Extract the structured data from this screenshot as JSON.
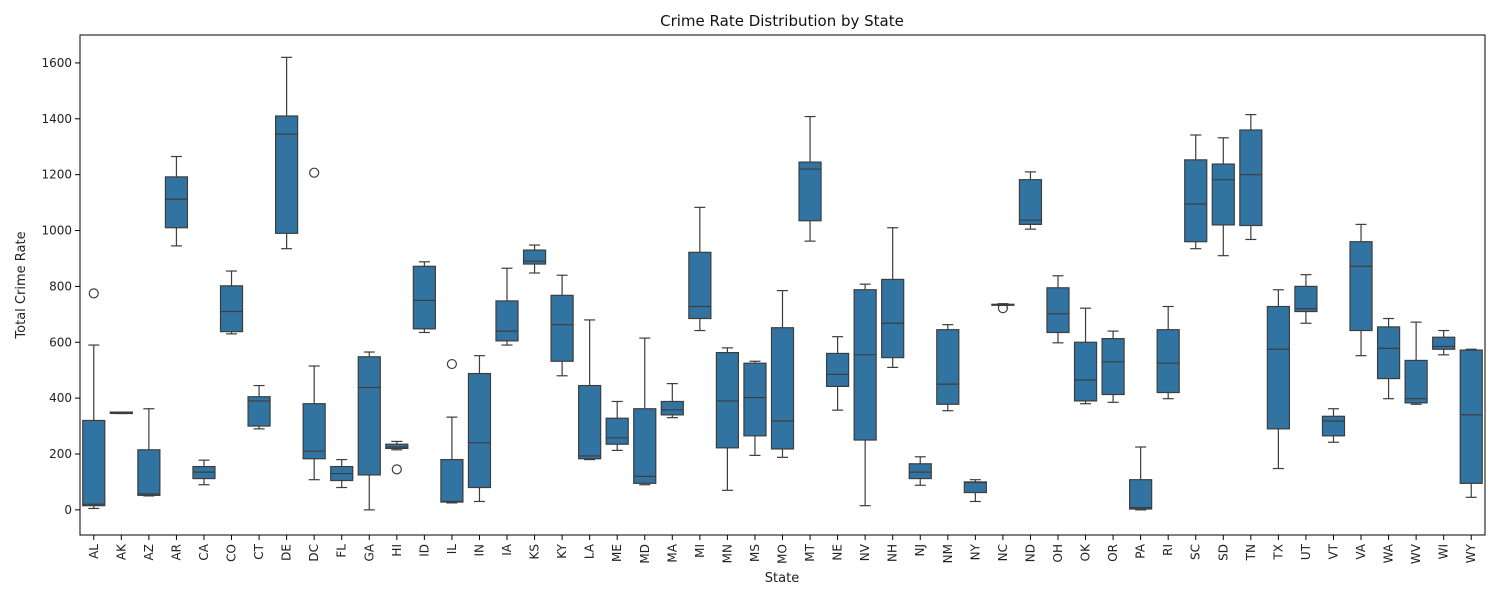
{
  "chart_data": {
    "type": "box",
    "title": "Crime Rate Distribution by State",
    "xlabel": "State",
    "ylabel": "Total Crime Rate",
    "ylim": [
      -90,
      1700
    ],
    "yticks": [
      0,
      200,
      400,
      600,
      800,
      1000,
      1200,
      1400,
      1600
    ],
    "grid": false,
    "legend": "none",
    "box_color": "#3274a1",
    "line_color": "#3d3d3d",
    "categories": [
      "AL",
      "AK",
      "AZ",
      "AR",
      "CA",
      "CO",
      "CT",
      "DE",
      "DC",
      "FL",
      "GA",
      "HI",
      "ID",
      "IL",
      "IN",
      "IA",
      "KS",
      "KY",
      "LA",
      "ME",
      "MD",
      "MA",
      "MI",
      "MN",
      "MS",
      "MO",
      "MT",
      "NE",
      "NV",
      "NH",
      "NJ",
      "NM",
      "NY",
      "NC",
      "ND",
      "OH",
      "OK",
      "OR",
      "PA",
      "RI",
      "SC",
      "SD",
      "TN",
      "TX",
      "UT",
      "VT",
      "VA",
      "WA",
      "WV",
      "WI",
      "WY"
    ],
    "boxes": [
      {
        "state": "AL",
        "min": 5,
        "q1": 15,
        "median": 20,
        "q3": 320,
        "max": 590,
        "outliers": [
          775
        ]
      },
      {
        "state": "AK",
        "min": 345,
        "q1": 345,
        "median": 348,
        "q3": 350,
        "max": 350,
        "outliers": []
      },
      {
        "state": "AZ",
        "min": 50,
        "q1": 52,
        "median": 57,
        "q3": 215,
        "max": 362,
        "outliers": []
      },
      {
        "state": "AR",
        "min": 945,
        "q1": 1010,
        "median": 1112,
        "q3": 1192,
        "max": 1265,
        "outliers": []
      },
      {
        "state": "CA",
        "min": 90,
        "q1": 112,
        "median": 135,
        "q3": 155,
        "max": 178,
        "outliers": []
      },
      {
        "state": "CO",
        "min": 630,
        "q1": 638,
        "median": 710,
        "q3": 802,
        "max": 855,
        "outliers": []
      },
      {
        "state": "CT",
        "min": 290,
        "q1": 300,
        "median": 390,
        "q3": 405,
        "max": 445,
        "outliers": []
      },
      {
        "state": "DE",
        "min": 935,
        "q1": 990,
        "median": 1345,
        "q3": 1410,
        "max": 1620,
        "outliers": []
      },
      {
        "state": "DC",
        "min": 108,
        "q1": 183,
        "median": 210,
        "q3": 380,
        "max": 515,
        "outliers": [
          1207
        ]
      },
      {
        "state": "FL",
        "min": 80,
        "q1": 105,
        "median": 130,
        "q3": 155,
        "max": 180,
        "outliers": []
      },
      {
        "state": "GA",
        "min": 0,
        "q1": 125,
        "median": 438,
        "q3": 548,
        "max": 565,
        "outliers": []
      },
      {
        "state": "HI",
        "min": 215,
        "q1": 220,
        "median": 225,
        "q3": 235,
        "max": 245,
        "outliers": [
          145
        ]
      },
      {
        "state": "ID",
        "min": 635,
        "q1": 648,
        "median": 750,
        "q3": 872,
        "max": 888,
        "outliers": []
      },
      {
        "state": "IL",
        "min": 25,
        "q1": 28,
        "median": 30,
        "q3": 180,
        "max": 332,
        "outliers": [
          522
        ]
      },
      {
        "state": "IN",
        "min": 30,
        "q1": 80,
        "median": 240,
        "q3": 488,
        "max": 552,
        "outliers": []
      },
      {
        "state": "IA",
        "min": 590,
        "q1": 605,
        "median": 640,
        "q3": 748,
        "max": 865,
        "outliers": []
      },
      {
        "state": "KS",
        "min": 848,
        "q1": 880,
        "median": 890,
        "q3": 930,
        "max": 948,
        "outliers": []
      },
      {
        "state": "KY",
        "min": 480,
        "q1": 532,
        "median": 663,
        "q3": 768,
        "max": 840,
        "outliers": []
      },
      {
        "state": "LA",
        "min": 180,
        "q1": 183,
        "median": 193,
        "q3": 445,
        "max": 680,
        "outliers": []
      },
      {
        "state": "ME",
        "min": 213,
        "q1": 235,
        "median": 258,
        "q3": 328,
        "max": 388,
        "outliers": []
      },
      {
        "state": "MD",
        "min": 90,
        "q1": 95,
        "median": 120,
        "q3": 362,
        "max": 615,
        "outliers": []
      },
      {
        "state": "MA",
        "min": 330,
        "q1": 340,
        "median": 358,
        "q3": 388,
        "max": 452,
        "outliers": []
      },
      {
        "state": "MI",
        "min": 642,
        "q1": 685,
        "median": 728,
        "q3": 922,
        "max": 1083,
        "outliers": []
      },
      {
        "state": "MN",
        "min": 70,
        "q1": 222,
        "median": 390,
        "q3": 563,
        "max": 580,
        "outliers": []
      },
      {
        "state": "MS",
        "min": 195,
        "q1": 265,
        "median": 402,
        "q3": 525,
        "max": 532,
        "outliers": []
      },
      {
        "state": "MO",
        "min": 188,
        "q1": 218,
        "median": 318,
        "q3": 652,
        "max": 785,
        "outliers": []
      },
      {
        "state": "MT",
        "min": 962,
        "q1": 1035,
        "median": 1220,
        "q3": 1245,
        "max": 1408,
        "outliers": []
      },
      {
        "state": "NE",
        "min": 357,
        "q1": 442,
        "median": 485,
        "q3": 560,
        "max": 620,
        "outliers": []
      },
      {
        "state": "NV",
        "min": 15,
        "q1": 250,
        "median": 555,
        "q3": 788,
        "max": 808,
        "outliers": []
      },
      {
        "state": "NH",
        "min": 510,
        "q1": 545,
        "median": 668,
        "q3": 825,
        "max": 1010,
        "outliers": []
      },
      {
        "state": "NJ",
        "min": 88,
        "q1": 112,
        "median": 135,
        "q3": 165,
        "max": 190,
        "outliers": []
      },
      {
        "state": "NM",
        "min": 355,
        "q1": 378,
        "median": 450,
        "q3": 645,
        "max": 663,
        "outliers": []
      },
      {
        "state": "NY",
        "min": 30,
        "q1": 62,
        "median": 98,
        "q3": 100,
        "max": 108,
        "outliers": []
      },
      {
        "state": "NC",
        "min": 732,
        "q1": 733,
        "median": 735,
        "q3": 736,
        "max": 738,
        "outliers": [
          722
        ]
      },
      {
        "state": "ND",
        "min": 1005,
        "q1": 1022,
        "median": 1037,
        "q3": 1182,
        "max": 1210,
        "outliers": []
      },
      {
        "state": "OH",
        "min": 598,
        "q1": 635,
        "median": 702,
        "q3": 795,
        "max": 838,
        "outliers": []
      },
      {
        "state": "OK",
        "min": 380,
        "q1": 390,
        "median": 465,
        "q3": 600,
        "max": 722,
        "outliers": []
      },
      {
        "state": "OR",
        "min": 385,
        "q1": 413,
        "median": 530,
        "q3": 613,
        "max": 640,
        "outliers": []
      },
      {
        "state": "PA",
        "min": 0,
        "q1": 3,
        "median": 8,
        "q3": 108,
        "max": 225,
        "outliers": []
      },
      {
        "state": "RI",
        "min": 398,
        "q1": 420,
        "median": 525,
        "q3": 645,
        "max": 728,
        "outliers": []
      },
      {
        "state": "SC",
        "min": 935,
        "q1": 960,
        "median": 1095,
        "q3": 1253,
        "max": 1342,
        "outliers": []
      },
      {
        "state": "SD",
        "min": 910,
        "q1": 1020,
        "median": 1182,
        "q3": 1238,
        "max": 1332,
        "outliers": []
      },
      {
        "state": "TN",
        "min": 968,
        "q1": 1018,
        "median": 1200,
        "q3": 1360,
        "max": 1415,
        "outliers": []
      },
      {
        "state": "TX",
        "min": 148,
        "q1": 290,
        "median": 575,
        "q3": 728,
        "max": 788,
        "outliers": []
      },
      {
        "state": "UT",
        "min": 668,
        "q1": 710,
        "median": 720,
        "q3": 800,
        "max": 842,
        "outliers": []
      },
      {
        "state": "VT",
        "min": 242,
        "q1": 265,
        "median": 318,
        "q3": 335,
        "max": 362,
        "outliers": []
      },
      {
        "state": "VA",
        "min": 552,
        "q1": 642,
        "median": 872,
        "q3": 960,
        "max": 1022,
        "outliers": []
      },
      {
        "state": "WA",
        "min": 398,
        "q1": 470,
        "median": 578,
        "q3": 655,
        "max": 685,
        "outliers": []
      },
      {
        "state": "WV",
        "min": 378,
        "q1": 383,
        "median": 398,
        "q3": 535,
        "max": 672,
        "outliers": []
      },
      {
        "state": "WI",
        "min": 555,
        "q1": 575,
        "median": 585,
        "q3": 618,
        "max": 642,
        "outliers": []
      },
      {
        "state": "WY",
        "min": 45,
        "q1": 95,
        "median": 340,
        "q3": 572,
        "max": 575,
        "outliers": []
      }
    ]
  }
}
